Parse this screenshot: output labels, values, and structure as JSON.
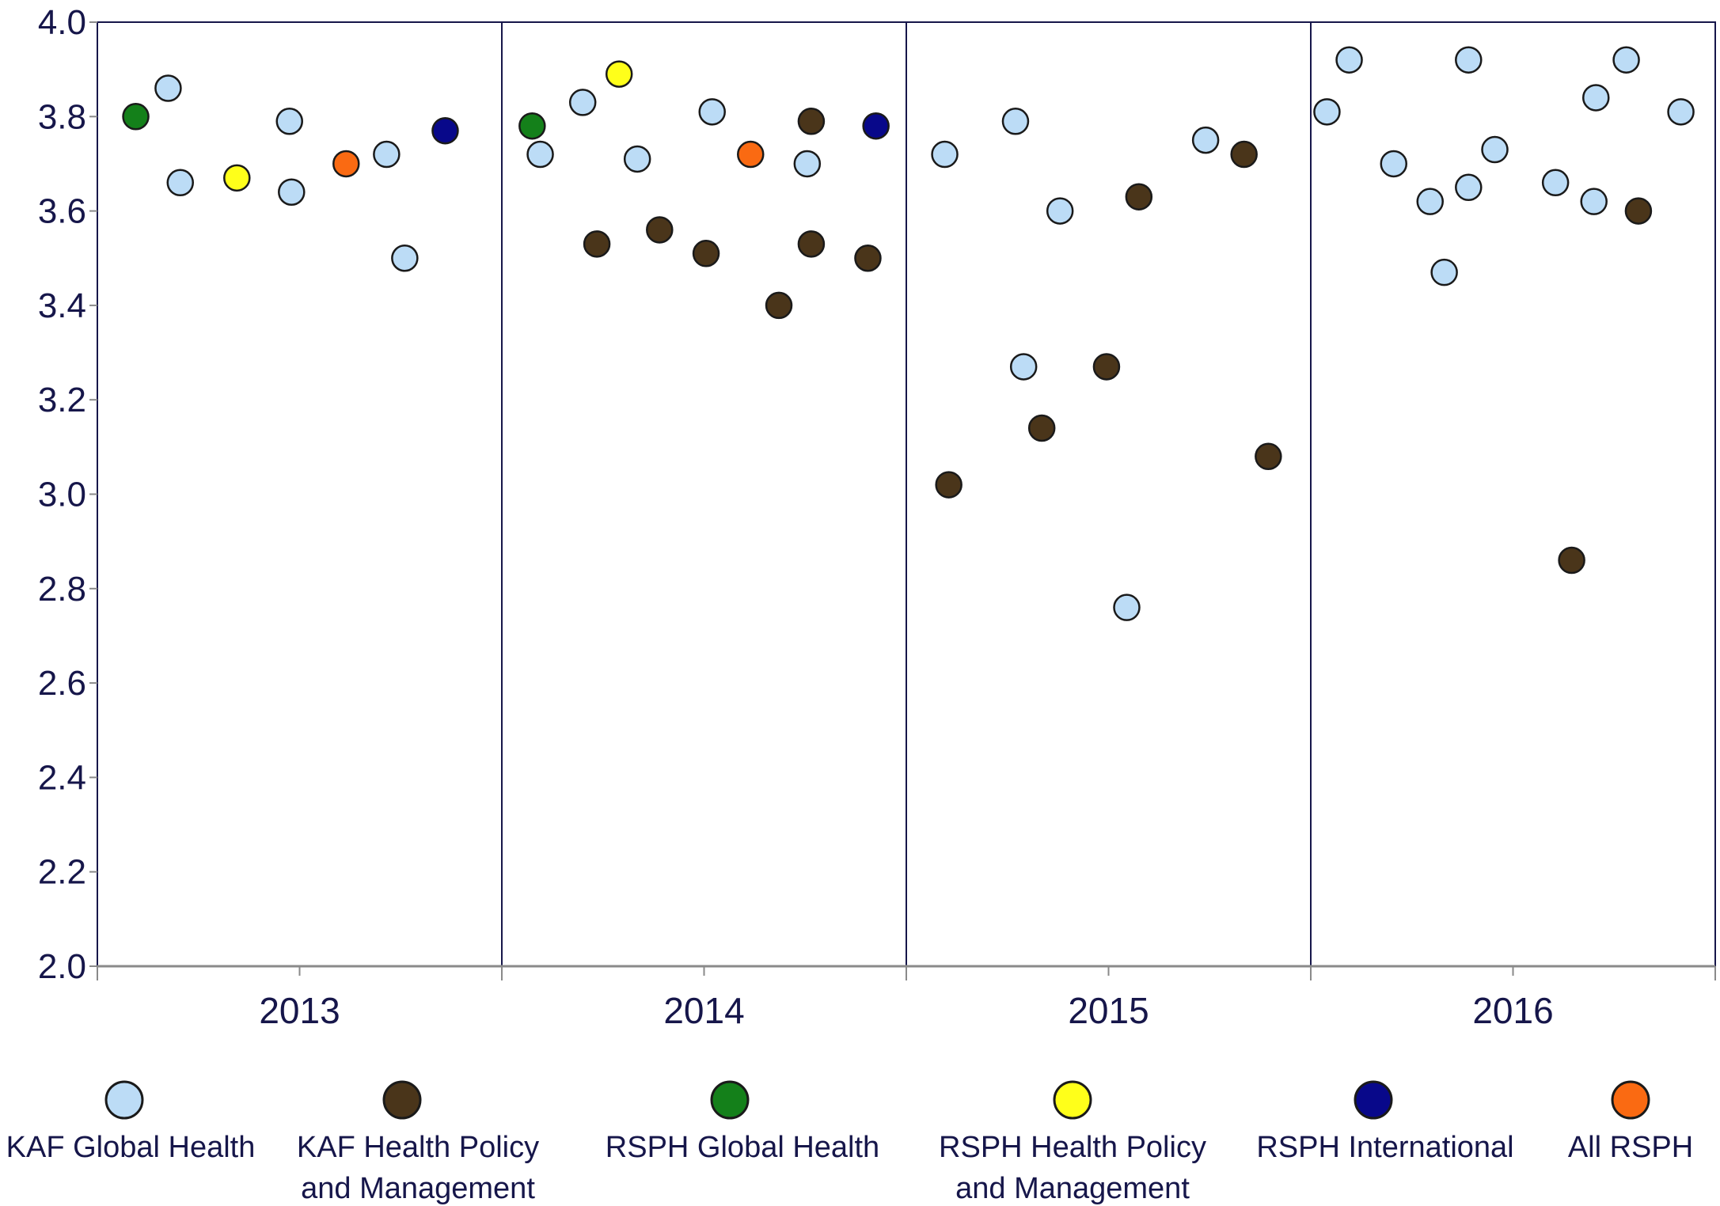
{
  "chart_data": {
    "type": "scatter",
    "ylim": [
      2.0,
      4.0
    ],
    "yticks": [
      "2.0",
      "2.2",
      "2.4",
      "2.6",
      "2.8",
      "3.0",
      "3.2",
      "3.4",
      "3.6",
      "3.8",
      "4.0"
    ],
    "categories": [
      "2013",
      "2014",
      "2015",
      "2016"
    ],
    "grid": false,
    "legend_position": "bottom",
    "series": [
      {
        "name": "KAF Global Health",
        "color": "#bcdcf6",
        "points": [
          {
            "year": "2013",
            "offset": -0.65,
            "y": 3.86
          },
          {
            "year": "2013",
            "offset": -0.59,
            "y": 3.66
          },
          {
            "year": "2013",
            "offset": -0.05,
            "y": 3.79
          },
          {
            "year": "2013",
            "offset": -0.04,
            "y": 3.64
          },
          {
            "year": "2013",
            "offset": 0.43,
            "y": 3.72
          },
          {
            "year": "2013",
            "offset": 0.52,
            "y": 3.5
          },
          {
            "year": "2014",
            "offset": -0.6,
            "y": 3.83
          },
          {
            "year": "2014",
            "offset": -0.33,
            "y": 3.71
          },
          {
            "year": "2014",
            "offset": 0.04,
            "y": 3.81
          },
          {
            "year": "2014",
            "offset": 0.51,
            "y": 3.7
          },
          {
            "year": "2014",
            "offset": -0.81,
            "y": 3.72
          },
          {
            "year": "2015",
            "offset": -0.81,
            "y": 3.72
          },
          {
            "year": "2015",
            "offset": -0.46,
            "y": 3.79
          },
          {
            "year": "2015",
            "offset": -0.42,
            "y": 3.27
          },
          {
            "year": "2015",
            "offset": -0.24,
            "y": 3.6
          },
          {
            "year": "2015",
            "offset": 0.09,
            "y": 2.76
          },
          {
            "year": "2015",
            "offset": 0.48,
            "y": 3.75
          },
          {
            "year": "2016",
            "offset": -0.92,
            "y": 3.81
          },
          {
            "year": "2016",
            "offset": -0.81,
            "y": 3.92
          },
          {
            "year": "2016",
            "offset": -0.59,
            "y": 3.7
          },
          {
            "year": "2016",
            "offset": -0.41,
            "y": 3.62
          },
          {
            "year": "2016",
            "offset": -0.34,
            "y": 3.47
          },
          {
            "year": "2016",
            "offset": -0.22,
            "y": 3.65
          },
          {
            "year": "2016",
            "offset": -0.22,
            "y": 3.92
          },
          {
            "year": "2016",
            "offset": -0.09,
            "y": 3.73
          },
          {
            "year": "2016",
            "offset": 0.21,
            "y": 3.66
          },
          {
            "year": "2016",
            "offset": 0.4,
            "y": 3.62
          },
          {
            "year": "2016",
            "offset": 0.41,
            "y": 3.84
          },
          {
            "year": "2016",
            "offset": 0.56,
            "y": 3.92
          },
          {
            "year": "2016",
            "offset": 0.83,
            "y": 3.81
          }
        ]
      },
      {
        "name": "KAF Health Policy and Management",
        "color": "#4a351a",
        "points": [
          {
            "year": "2014",
            "offset": -0.53,
            "y": 3.53
          },
          {
            "year": "2014",
            "offset": -0.22,
            "y": 3.56
          },
          {
            "year": "2014",
            "offset": 0.01,
            "y": 3.51
          },
          {
            "year": "2014",
            "offset": 0.37,
            "y": 3.4
          },
          {
            "year": "2014",
            "offset": 0.53,
            "y": 3.79
          },
          {
            "year": "2014",
            "offset": 0.53,
            "y": 3.53
          },
          {
            "year": "2014",
            "offset": 0.81,
            "y": 3.5
          },
          {
            "year": "2015",
            "offset": -0.79,
            "y": 3.02
          },
          {
            "year": "2015",
            "offset": -0.33,
            "y": 3.14
          },
          {
            "year": "2015",
            "offset": -0.01,
            "y": 3.27
          },
          {
            "year": "2015",
            "offset": 0.15,
            "y": 3.63
          },
          {
            "year": "2015",
            "offset": 0.67,
            "y": 3.72
          },
          {
            "year": "2015",
            "offset": 0.79,
            "y": 3.08
          },
          {
            "year": "2016",
            "offset": 0.29,
            "y": 2.86
          },
          {
            "year": "2016",
            "offset": 0.62,
            "y": 3.6
          }
        ]
      },
      {
        "name": "RSPH  Global Health",
        "color": "#14801a",
        "points": [
          {
            "year": "2013",
            "offset": -0.81,
            "y": 3.8
          },
          {
            "year": "2014",
            "offset": -0.85,
            "y": 3.78
          }
        ]
      },
      {
        "name": "RSPH Health Policy and Management",
        "color": "#ffff1a",
        "points": [
          {
            "year": "2013",
            "offset": -0.31,
            "y": 3.67
          },
          {
            "year": "2014",
            "offset": -0.42,
            "y": 3.89
          }
        ]
      },
      {
        "name": "RSPH International",
        "color": "#08088a",
        "points": [
          {
            "year": "2013",
            "offset": 0.72,
            "y": 3.77
          },
          {
            "year": "2014",
            "offset": 0.85,
            "y": 3.78
          }
        ]
      },
      {
        "name": "All RSPH",
        "color": "#fa6a12",
        "points": [
          {
            "year": "2013",
            "offset": 0.23,
            "y": 3.7
          },
          {
            "year": "2014",
            "offset": 0.23,
            "y": 3.72
          }
        ]
      }
    ]
  },
  "legend": [
    {
      "lines": [
        "KAF Global Health"
      ],
      "color": "#bcdcf6"
    },
    {
      "lines": [
        "KAF Health Policy",
        "and Management"
      ],
      "color": "#4a351a"
    },
    {
      "lines": [
        "RSPH  Global Health"
      ],
      "color": "#14801a"
    },
    {
      "lines": [
        "RSPH Health Policy",
        "and Management"
      ],
      "color": "#ffff1a"
    },
    {
      "lines": [
        "RSPH International"
      ],
      "color": "#08088a"
    },
    {
      "lines": [
        "All RSPH"
      ],
      "color": "#fa6a12"
    }
  ],
  "colors": {
    "frame": "#16164a",
    "axis": "#8a8a8a",
    "marker_stroke": "#1a1a1a"
  }
}
